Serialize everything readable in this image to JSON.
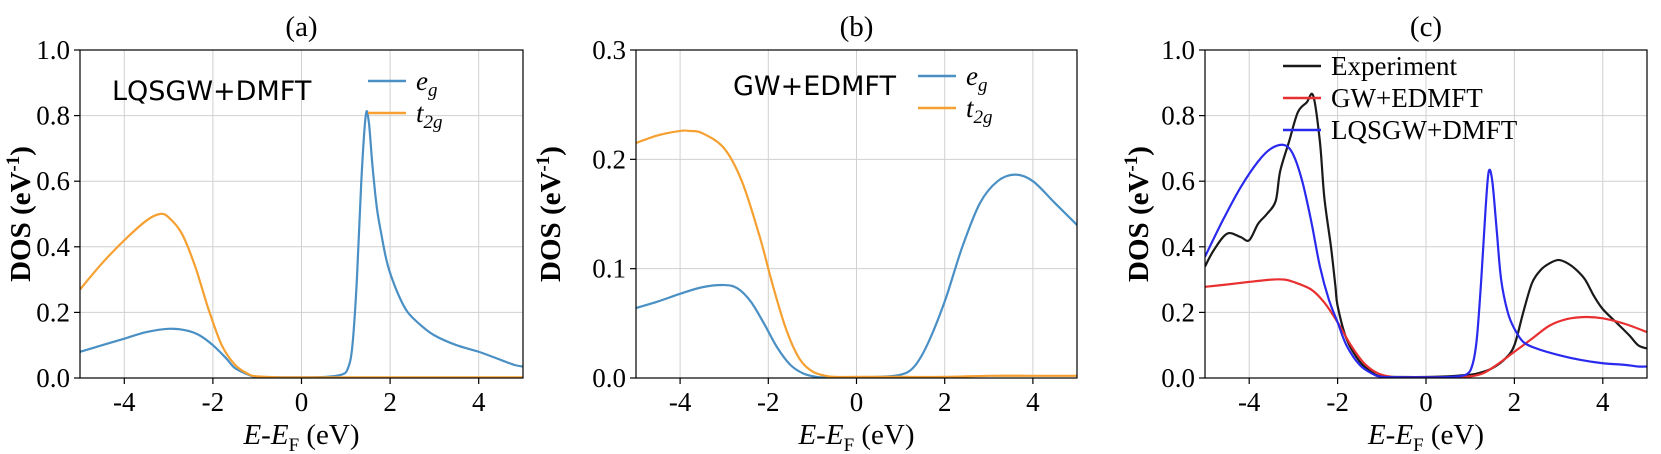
{
  "chart_data": [
    {
      "panel": "(a)",
      "type": "line",
      "title": "(a)",
      "annotation": "LQSGW+DMFT",
      "xlabel": "E-E_F (eV)",
      "ylabel": "DOS (eV^-1)",
      "xlim": [
        -5,
        5
      ],
      "ylim": [
        0,
        1.0
      ],
      "xticks": [
        -4,
        -2,
        0,
        2,
        4
      ],
      "yticks": [
        0.0,
        0.2,
        0.4,
        0.6,
        0.8,
        1.0
      ],
      "ytick_labels": [
        "0.0",
        "0.2",
        "0.4",
        "0.6",
        "0.8",
        "1.0"
      ],
      "grid": true,
      "legend_position": "top-right",
      "series": [
        {
          "name": "e_g",
          "name_main": "e",
          "name_sub": "g",
          "color": "#4a90c4",
          "x": [
            -5,
            -4.5,
            -4,
            -3.5,
            -3,
            -2.6,
            -2.3,
            -2,
            -1.7,
            -1.5,
            -1.2,
            -1,
            -0.5,
            0,
            0.5,
            0.9,
            1.05,
            1.15,
            1.25,
            1.35,
            1.45,
            1.52,
            1.6,
            1.7,
            1.8,
            1.9,
            2,
            2.2,
            2.4,
            2.7,
            3,
            3.5,
            4,
            4.5,
            4.8,
            5
          ],
          "y": [
            0.08,
            0.1,
            0.12,
            0.14,
            0.15,
            0.145,
            0.13,
            0.1,
            0.06,
            0.03,
            0.01,
            0.003,
            0.002,
            0.002,
            0.003,
            0.01,
            0.03,
            0.1,
            0.3,
            0.6,
            0.8,
            0.78,
            0.65,
            0.52,
            0.44,
            0.37,
            0.32,
            0.25,
            0.2,
            0.16,
            0.13,
            0.1,
            0.08,
            0.055,
            0.04,
            0.035
          ]
        },
        {
          "name": "t_2g",
          "name_main": "t",
          "name_sub": "2g",
          "color": "#f5a030",
          "x": [
            -5,
            -4.5,
            -4,
            -3.5,
            -3.2,
            -3,
            -2.7,
            -2.4,
            -2.1,
            -1.8,
            -1.5,
            -1.2,
            -1,
            -0.5,
            0,
            1,
            2,
            3,
            4,
            5
          ],
          "y": [
            0.27,
            0.35,
            0.42,
            0.48,
            0.5,
            0.49,
            0.44,
            0.34,
            0.21,
            0.1,
            0.04,
            0.012,
            0.005,
            0.002,
            0.002,
            0.002,
            0.002,
            0.002,
            0.002,
            0.002
          ]
        }
      ]
    },
    {
      "panel": "(b)",
      "type": "line",
      "title": "(b)",
      "annotation": "GW+EDMFT",
      "xlabel": "E-E_F (eV)",
      "ylabel": "DOS (eV^-1)",
      "xlim": [
        -5,
        5
      ],
      "ylim": [
        0,
        0.3
      ],
      "xticks": [
        -4,
        -2,
        0,
        2,
        4
      ],
      "yticks": [
        0.0,
        0.1,
        0.2,
        0.3
      ],
      "ytick_labels": [
        "0.0",
        "0.1",
        "0.2",
        "0.3"
      ],
      "grid": true,
      "legend_position": "top-right",
      "series": [
        {
          "name": "e_g",
          "name_main": "e",
          "name_sub": "g",
          "color": "#4a90c4",
          "x": [
            -5,
            -4.5,
            -4,
            -3.5,
            -3,
            -2.7,
            -2.4,
            -2.1,
            -1.8,
            -1.5,
            -1.2,
            -0.9,
            -0.6,
            -0.3,
            0,
            0.5,
            1,
            1.3,
            1.6,
            2,
            2.4,
            2.8,
            3.2,
            3.6,
            4,
            4.5,
            5
          ],
          "y": [
            0.064,
            0.07,
            0.077,
            0.083,
            0.085,
            0.082,
            0.07,
            0.05,
            0.028,
            0.012,
            0.004,
            0.001,
            0.0005,
            0.0005,
            0.0005,
            0.001,
            0.003,
            0.01,
            0.03,
            0.07,
            0.12,
            0.16,
            0.18,
            0.186,
            0.18,
            0.16,
            0.14
          ]
        },
        {
          "name": "t_2g",
          "name_main": "t",
          "name_sub": "2g",
          "color": "#f5a030",
          "x": [
            -5,
            -4.5,
            -4,
            -3.8,
            -3.5,
            -3,
            -2.6,
            -2.2,
            -1.9,
            -1.6,
            -1.3,
            -1,
            -0.7,
            -0.5,
            0,
            1,
            2,
            3,
            4,
            5
          ],
          "y": [
            0.215,
            0.222,
            0.226,
            0.226,
            0.224,
            0.21,
            0.18,
            0.13,
            0.085,
            0.045,
            0.018,
            0.006,
            0.002,
            0.001,
            0.001,
            0.001,
            0.001,
            0.002,
            0.002,
            0.002
          ]
        }
      ]
    },
    {
      "panel": "(c)",
      "type": "line",
      "title": "(c)",
      "xlabel": "E-E_F (eV)",
      "ylabel": "DOS (eV^-1)",
      "xlim": [
        -5,
        5
      ],
      "ylim": [
        0,
        1.0
      ],
      "xticks": [
        -4,
        -2,
        0,
        2,
        4
      ],
      "yticks": [
        0.0,
        0.2,
        0.4,
        0.6,
        0.8,
        1.0
      ],
      "ytick_labels": [
        "0.0",
        "0.2",
        "0.4",
        "0.6",
        "0.8",
        "1.0"
      ],
      "grid": true,
      "legend_position": "top-right",
      "series": [
        {
          "name": "Experiment",
          "color": "#1a1a1a",
          "x": [
            -5,
            -4.8,
            -4.5,
            -4.2,
            -4,
            -3.8,
            -3.6,
            -3.4,
            -3.3,
            -3.1,
            -2.9,
            -2.7,
            -2.55,
            -2.4,
            -2.3,
            -2.15,
            -2.05,
            -2,
            -1.8,
            -1.5,
            -1.2,
            -1,
            -0.5,
            0,
            0.5,
            0.8,
            1,
            1.2,
            1.5,
            1.8,
            2,
            2.2,
            2.4,
            2.6,
            2.8,
            3,
            3.2,
            3.4,
            3.6,
            3.8,
            4,
            4.3,
            4.6,
            4.8,
            5
          ],
          "y": [
            0.34,
            0.39,
            0.44,
            0.43,
            0.42,
            0.47,
            0.5,
            0.54,
            0.63,
            0.72,
            0.81,
            0.84,
            0.86,
            0.72,
            0.55,
            0.4,
            0.28,
            0.22,
            0.12,
            0.05,
            0.015,
            0.005,
            0.003,
            0.003,
            0.005,
            0.008,
            0.01,
            0.015,
            0.03,
            0.06,
            0.1,
            0.2,
            0.29,
            0.33,
            0.35,
            0.36,
            0.35,
            0.33,
            0.3,
            0.25,
            0.21,
            0.17,
            0.13,
            0.1,
            0.09
          ]
        },
        {
          "name": "GW+EDMFT",
          "color": "#e83030",
          "x": [
            -5,
            -4.5,
            -4,
            -3.5,
            -3.2,
            -3,
            -2.6,
            -2.3,
            -2,
            -1.7,
            -1.4,
            -1.1,
            -0.8,
            -0.5,
            0,
            0.5,
            1,
            1.3,
            1.6,
            2,
            2.4,
            2.8,
            3.2,
            3.6,
            4,
            4.5,
            5
          ],
          "y": [
            0.278,
            0.285,
            0.293,
            0.3,
            0.3,
            0.293,
            0.27,
            0.23,
            0.17,
            0.1,
            0.045,
            0.015,
            0.004,
            0.002,
            0.002,
            0.002,
            0.005,
            0.015,
            0.04,
            0.08,
            0.12,
            0.16,
            0.18,
            0.186,
            0.182,
            0.165,
            0.14
          ]
        },
        {
          "name": "LQSGW+DMFT",
          "color": "#2a2aee",
          "x": [
            -5,
            -4.6,
            -4.2,
            -3.8,
            -3.5,
            -3.2,
            -3,
            -2.8,
            -2.6,
            -2.4,
            -2.2,
            -2,
            -1.8,
            -1.5,
            -1.2,
            -1,
            -0.5,
            0,
            0.5,
            0.9,
            1.05,
            1.15,
            1.25,
            1.35,
            1.42,
            1.5,
            1.6,
            1.7,
            1.85,
            2,
            2.2,
            2.5,
            3,
            3.5,
            4,
            4.5,
            4.8,
            5
          ],
          "y": [
            0.37,
            0.48,
            0.58,
            0.66,
            0.7,
            0.71,
            0.68,
            0.6,
            0.48,
            0.34,
            0.24,
            0.17,
            0.1,
            0.04,
            0.012,
            0.004,
            0.002,
            0.002,
            0.003,
            0.01,
            0.04,
            0.12,
            0.3,
            0.52,
            0.63,
            0.6,
            0.45,
            0.3,
            0.2,
            0.15,
            0.11,
            0.09,
            0.07,
            0.055,
            0.045,
            0.04,
            0.035,
            0.035
          ]
        }
      ]
    }
  ]
}
